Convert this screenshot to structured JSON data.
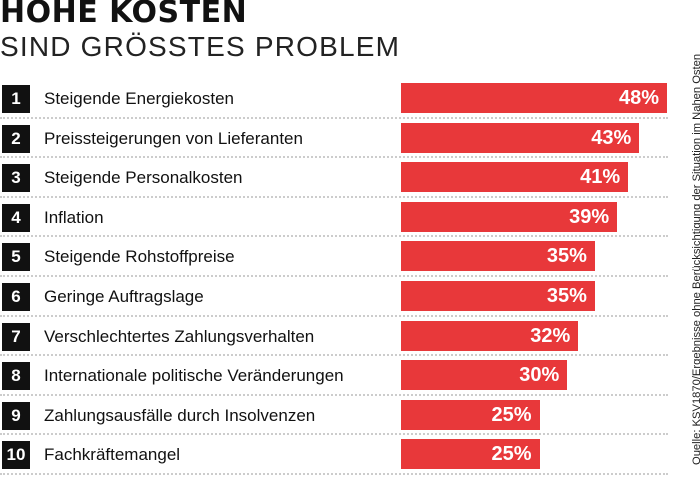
{
  "title": "HOHE KOSTEN",
  "subtitle": "SIND GRÖSSTES PROBLEM",
  "source": "Quelle: KSV1870/Ergebnisse ohne Berücksichtigung der Situation im Nahen Osten",
  "colors": {
    "bar": "#e8383a",
    "rank_box": "#111111"
  },
  "chart_data": {
    "type": "bar",
    "orientation": "horizontal",
    "title": "HOHE KOSTEN SIND GRÖSSTES PROBLEM",
    "categories": [
      "Steigende Energiekosten",
      "Preissteigerungen von Lieferanten",
      "Steigende Personalkosten",
      "Inflation",
      "Steigende Rohstoffpreise",
      "Geringe Auftragslage",
      "Verschlechtertes Zahlungsverhalten",
      "Internationale politische Veränderungen",
      "Zahlungsausfälle durch Insolvenzen",
      "Fachkräftemangel"
    ],
    "ranks": [
      "1",
      "2",
      "3",
      "4",
      "5",
      "6",
      "7",
      "8",
      "9",
      "10"
    ],
    "values": [
      48,
      43,
      41,
      39,
      35,
      35,
      32,
      30,
      25,
      25
    ],
    "value_labels": [
      "48%",
      "43%",
      "41%",
      "39%",
      "35%",
      "35%",
      "32%",
      "30%",
      "25%",
      "25%"
    ],
    "unit": "%",
    "grid": false,
    "legend": "none"
  }
}
